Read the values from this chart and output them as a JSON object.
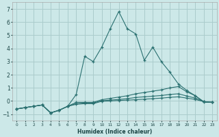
{
  "xlabel": "Humidex (Indice chaleur)",
  "background_color": "#cce8e8",
  "grid_color": "#aacccc",
  "line_color": "#2a7070",
  "xlim": [
    -0.5,
    23.5
  ],
  "ylim": [
    -1.5,
    7.5
  ],
  "yticks": [
    -1,
    0,
    1,
    2,
    3,
    4,
    5,
    6,
    7
  ],
  "xticks": [
    0,
    1,
    2,
    3,
    4,
    5,
    6,
    7,
    8,
    9,
    10,
    11,
    12,
    13,
    14,
    15,
    16,
    17,
    18,
    19,
    20,
    21,
    22,
    23
  ],
  "series": [
    {
      "x": [
        0,
        1,
        2,
        3,
        4,
        5,
        6,
        7,
        8,
        9,
        10,
        11,
        12,
        13,
        14,
        15,
        16,
        17,
        18,
        19,
        20,
        21,
        22,
        23
      ],
      "y": [
        -0.6,
        -0.5,
        -0.4,
        -0.3,
        -0.9,
        -0.7,
        -0.4,
        0.5,
        3.4,
        3.0,
        4.1,
        5.5,
        6.8,
        5.5,
        5.1,
        3.1,
        4.1,
        3.0,
        2.2,
        1.3,
        0.8,
        0.4,
        -0.1,
        -0.1
      ]
    },
    {
      "x": [
        0,
        1,
        2,
        3,
        4,
        5,
        6,
        7,
        8,
        9,
        10,
        11,
        12,
        13,
        14,
        15,
        16,
        17,
        18,
        19,
        20,
        21,
        22,
        23
      ],
      "y": [
        -0.6,
        -0.5,
        -0.4,
        -0.3,
        -0.9,
        -0.7,
        -0.4,
        -0.1,
        -0.1,
        -0.1,
        0.1,
        0.2,
        0.3,
        0.4,
        0.55,
        0.65,
        0.75,
        0.85,
        1.0,
        1.1,
        0.7,
        0.4,
        -0.05,
        -0.1
      ]
    },
    {
      "x": [
        0,
        1,
        2,
        3,
        4,
        5,
        6,
        7,
        8,
        9,
        10,
        11,
        12,
        13,
        14,
        15,
        16,
        17,
        18,
        19,
        20,
        21,
        22,
        23
      ],
      "y": [
        -0.6,
        -0.5,
        -0.4,
        -0.3,
        -0.9,
        -0.7,
        -0.4,
        -0.2,
        -0.15,
        -0.15,
        0.02,
        0.07,
        0.12,
        0.18,
        0.27,
        0.32,
        0.37,
        0.42,
        0.5,
        0.55,
        0.38,
        0.22,
        -0.05,
        -0.1
      ]
    },
    {
      "x": [
        0,
        1,
        2,
        3,
        4,
        5,
        6,
        7,
        8,
        9,
        10,
        11,
        12,
        13,
        14,
        15,
        16,
        17,
        18,
        19,
        20,
        21,
        22,
        23
      ],
      "y": [
        -0.6,
        -0.5,
        -0.4,
        -0.3,
        -0.9,
        -0.7,
        -0.4,
        -0.25,
        -0.2,
        -0.2,
        -0.02,
        0.0,
        0.04,
        0.07,
        0.1,
        0.14,
        0.18,
        0.22,
        0.28,
        0.32,
        0.22,
        0.12,
        -0.05,
        -0.1
      ]
    }
  ]
}
